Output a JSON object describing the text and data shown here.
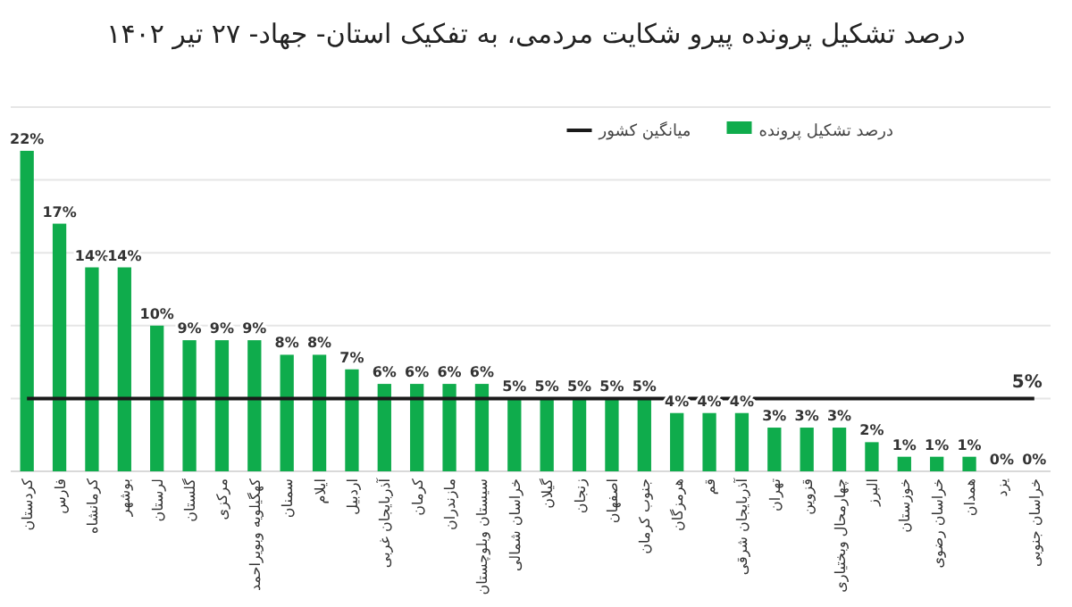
{
  "chart_data": {
    "type": "bar",
    "title": "درصد تشکیل پرونده پیرو شکایت مردمی، به تفکیک استان- جهاد- ۲۷ تیر ۱۴۰۲",
    "categories": [
      "کردستان",
      "فارس",
      "کرمانشاه",
      "بوشهر",
      "لرستان",
      "گلستان",
      "مرکزی",
      "کهگیلویه وبویراحمد",
      "سمنان",
      "ایلام",
      "اردبیل",
      "آذربایجان غربی",
      "کرمان",
      "مازندران",
      "سیستان وبلوچستان",
      "خراسان شمالی",
      "گیلان",
      "زنجان",
      "اصفهان",
      "جنوب کرمان",
      "هرمزگان",
      "قم",
      "آذربایجان شرقی",
      "تهران",
      "قزوین",
      "چهارمحال وبختیاری",
      "البرز",
      "خوزستان",
      "خراسان رضوی",
      "همدان",
      "یزد",
      "خراسان جنوبی"
    ],
    "series": [
      {
        "name": "درصد تشکیل پرونده",
        "color": "#0fac4c",
        "values": [
          22,
          17,
          14,
          14,
          10,
          9,
          9,
          9,
          8,
          8,
          7,
          6,
          6,
          6,
          6,
          5,
          5,
          5,
          5,
          5,
          4,
          4,
          4,
          3,
          3,
          3,
          2,
          1,
          1,
          1,
          0,
          0
        ],
        "value_labels": [
          "22%",
          "17%",
          "14%",
          "14%",
          "10%",
          "9%",
          "9%",
          "9%",
          "8%",
          "8%",
          "7%",
          "6%",
          "6%",
          "6%",
          "6%",
          "5%",
          "5%",
          "5%",
          "5%",
          "5%",
          "4%",
          "4%",
          "4%",
          "3%",
          "3%",
          "3%",
          "2%",
          "1%",
          "1%",
          "1%",
          "0%",
          "0%"
        ]
      },
      {
        "name": "میانگین کشور",
        "type": "line",
        "color": "#1a1a1a",
        "values": [
          5,
          5,
          5,
          5,
          5,
          5,
          5,
          5,
          5,
          5,
          5,
          5,
          5,
          5,
          5,
          5,
          5,
          5,
          5,
          5,
          5,
          5,
          5,
          5,
          5,
          5,
          5,
          5,
          5,
          5,
          5,
          5
        ],
        "value_labels": [
          null,
          null,
          null,
          null,
          null,
          null,
          null,
          null,
          null,
          null,
          null,
          null,
          null,
          null,
          null,
          null,
          null,
          null,
          null,
          null,
          null,
          null,
          null,
          null,
          null,
          null,
          null,
          null,
          null,
          null,
          null,
          "5%"
        ]
      }
    ],
    "ylim": [
      0,
      25
    ],
    "yticks": [
      {
        "value": 5,
        "label": null
      },
      {
        "value": 10,
        "label": null
      },
      {
        "value": 15,
        "label": null
      },
      {
        "value": 20,
        "label": null
      },
      {
        "value": 25,
        "label": null
      }
    ],
    "tick_labels": "x",
    "grid": "y",
    "legend": "top"
  }
}
